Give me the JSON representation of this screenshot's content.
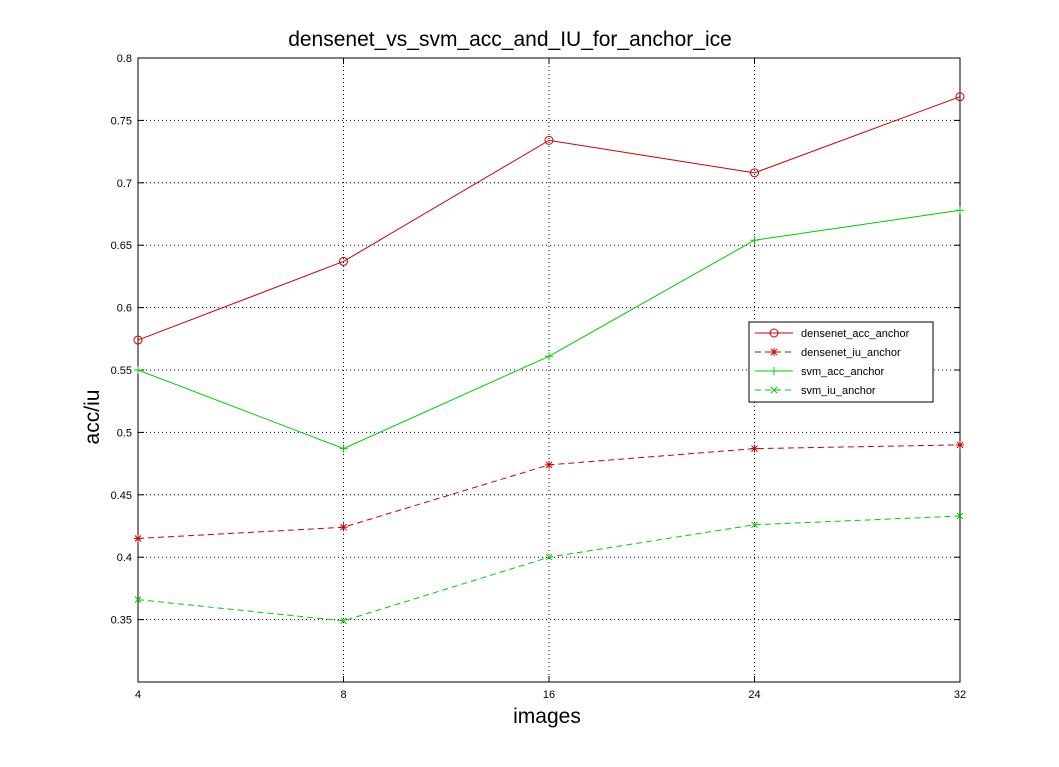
{
  "chart_data": {
    "type": "line",
    "title": "densenet_vs_svm_acc_and_IU_for_anchor_ice",
    "xlabel": "images",
    "ylabel": "acc/iu",
    "categories": [
      "4",
      "8",
      "16",
      "24",
      "32"
    ],
    "ylim": [
      0.3,
      0.8
    ],
    "yticks": [
      0.35,
      0.4,
      0.45,
      0.5,
      0.55,
      0.6,
      0.65,
      0.7,
      0.75,
      0.8
    ],
    "ytick_labels": [
      "0.35",
      "0.4",
      "0.45",
      "0.5",
      "0.55",
      "0.6",
      "0.65",
      "0.7",
      "0.75",
      "0.8"
    ],
    "grid": true,
    "legend_position": "right",
    "series": [
      {
        "name": "densenet_acc_anchor",
        "values": [
          0.574,
          0.637,
          0.734,
          0.708,
          0.769
        ],
        "color": "#cc0000",
        "dash": "solid",
        "marker": "o"
      },
      {
        "name": "densenet_iu_anchor",
        "values": [
          0.415,
          0.424,
          0.474,
          0.487,
          0.49
        ],
        "color": "#cc0000",
        "dash": "dashed",
        "marker": "*"
      },
      {
        "name": "svm_acc_anchor",
        "values": [
          0.55,
          0.487,
          0.561,
          0.654,
          0.678
        ],
        "color": "#00cc00",
        "dash": "solid",
        "marker": "+"
      },
      {
        "name": "svm_iu_anchor",
        "values": [
          0.366,
          0.349,
          0.4,
          0.426,
          0.433
        ],
        "color": "#00cc00",
        "dash": "dashed",
        "marker": "x"
      }
    ]
  }
}
